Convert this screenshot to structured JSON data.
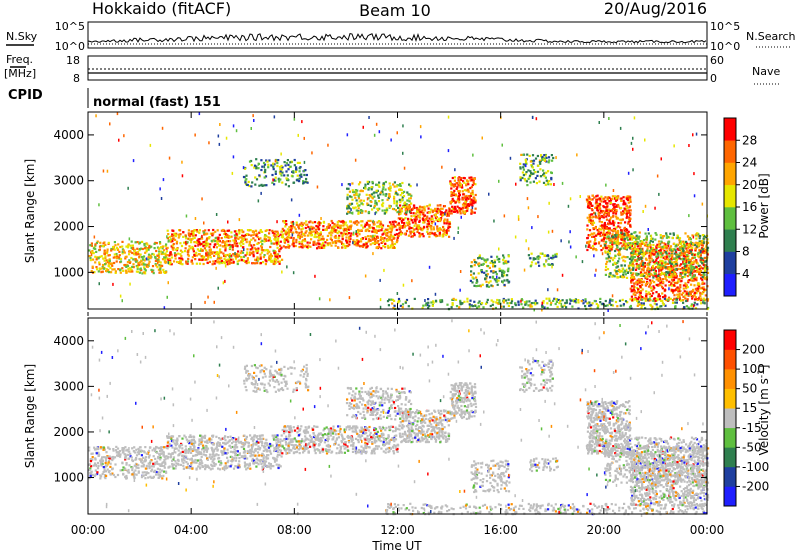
{
  "header": {
    "station": "Hokkaido (fitACF)",
    "beam": "Beam 10",
    "date": "20/Aug/2016"
  },
  "top_panels": {
    "nsky_label": "N.Sky",
    "nsky_ticks": [
      "10^5",
      "10^0"
    ],
    "nsearch_label": "N.Search",
    "nsearch_ticks": [
      "10^5",
      "10^0"
    ],
    "freq_label_line1": "Freq.",
    "freq_label_line2": "[MHz]",
    "freq_ticks": [
      "18",
      "8"
    ],
    "nave_label": "Nave",
    "nave_ticks": [
      "60",
      "0"
    ],
    "cpid_label": "CPID",
    "cpid_value": "normal (fast) 151"
  },
  "chart_data": [
    {
      "type": "heatmap",
      "panel": "power",
      "ylabel": "Slant Range [km]",
      "xlabel": "",
      "yticks": [
        "1000",
        "2000",
        "3000",
        "4000"
      ],
      "ylim": [
        200,
        4500
      ],
      "xlim_hours": [
        0,
        24
      ],
      "colorbar_label": "Power [dB]",
      "colorbar_ticks": [
        "4",
        "8",
        "12",
        "16",
        "20",
        "24",
        "28"
      ],
      "colorbar_colors": [
        "#1f1fff",
        "#1f3f9f",
        "#2f7f4f",
        "#5fbf3f",
        "#e6e600",
        "#ffa500",
        "#ff6600",
        "#ff0000"
      ],
      "bands": [
        {
          "t0": 0.0,
          "t1": 3.0,
          "r0": 1000,
          "r1": 1700,
          "intensity": 0.65
        },
        {
          "t0": 3.0,
          "t1": 7.5,
          "r0": 1200,
          "r1": 1950,
          "intensity": 0.75
        },
        {
          "t0": 7.5,
          "t1": 12.0,
          "r0": 1550,
          "r1": 2150,
          "intensity": 0.8
        },
        {
          "t0": 12.0,
          "t1": 14.0,
          "r0": 1800,
          "r1": 2500,
          "intensity": 0.85
        },
        {
          "t0": 14.0,
          "t1": 15.0,
          "r0": 2300,
          "r1": 3100,
          "intensity": 0.9
        },
        {
          "t0": 6.0,
          "t1": 8.5,
          "r0": 2900,
          "r1": 3500,
          "intensity": 0.35
        },
        {
          "t0": 10.0,
          "t1": 12.5,
          "r0": 2300,
          "r1": 3000,
          "intensity": 0.5
        },
        {
          "t0": 14.8,
          "t1": 16.3,
          "r0": 700,
          "r1": 1400,
          "intensity": 0.45
        },
        {
          "t0": 17.0,
          "t1": 18.2,
          "r0": 1150,
          "r1": 1450,
          "intensity": 0.35
        },
        {
          "t0": 16.7,
          "t1": 18.0,
          "r0": 2900,
          "r1": 3600,
          "intensity": 0.4
        },
        {
          "t0": 19.3,
          "t1": 21.0,
          "r0": 1500,
          "r1": 2700,
          "intensity": 0.9
        },
        {
          "t0": 21.0,
          "t1": 24.0,
          "r0": 400,
          "r1": 1700,
          "intensity": 0.85
        },
        {
          "t0": 20.0,
          "t1": 24.0,
          "r0": 900,
          "r1": 1900,
          "intensity": 0.5
        },
        {
          "t0": 11.5,
          "t1": 24.0,
          "r0": 220,
          "r1": 450,
          "intensity": 0.4
        }
      ]
    },
    {
      "type": "heatmap",
      "panel": "velocity",
      "ylabel": "Slant Range [km]",
      "xlabel": "Time UT",
      "yticks": [
        "1000",
        "2000",
        "3000",
        "4000"
      ],
      "ylim": [
        200,
        4500
      ],
      "xticks": [
        "00:00",
        "04:00",
        "08:00",
        "12:00",
        "16:00",
        "20:00",
        "00:00"
      ],
      "xlim_hours": [
        0,
        24
      ],
      "colorbar_label": "Velocity [m s^-1]",
      "colorbar_ticks": [
        "200",
        "100",
        "50",
        "15",
        "-15",
        "-50",
        "-100",
        "-200"
      ],
      "colorbar_colors": [
        "#1f1fff",
        "#1f3f9f",
        "#2f7f4f",
        "#5fbf3f",
        "#bebebe",
        "#ffbf00",
        "#ff9000",
        "#ff5000",
        "#ff0000"
      ],
      "bands": [
        {
          "t0": 0.0,
          "t1": 3.0,
          "r0": 1000,
          "r1": 1700,
          "intensity": 0.65
        },
        {
          "t0": 3.0,
          "t1": 7.5,
          "r0": 1200,
          "r1": 1950,
          "intensity": 0.75
        },
        {
          "t0": 7.5,
          "t1": 12.0,
          "r0": 1550,
          "r1": 2150,
          "intensity": 0.8
        },
        {
          "t0": 12.0,
          "t1": 14.0,
          "r0": 1800,
          "r1": 2500,
          "intensity": 0.85
        },
        {
          "t0": 14.0,
          "t1": 15.0,
          "r0": 2300,
          "r1": 3100,
          "intensity": 0.9
        },
        {
          "t0": 6.0,
          "t1": 8.5,
          "r0": 2900,
          "r1": 3500,
          "intensity": 0.35
        },
        {
          "t0": 10.0,
          "t1": 12.5,
          "r0": 2300,
          "r1": 3000,
          "intensity": 0.5
        },
        {
          "t0": 14.8,
          "t1": 16.3,
          "r0": 700,
          "r1": 1400,
          "intensity": 0.45
        },
        {
          "t0": 17.0,
          "t1": 18.2,
          "r0": 1150,
          "r1": 1450,
          "intensity": 0.35
        },
        {
          "t0": 16.7,
          "t1": 18.0,
          "r0": 2900,
          "r1": 3600,
          "intensity": 0.4
        },
        {
          "t0": 19.3,
          "t1": 21.0,
          "r0": 1500,
          "r1": 2700,
          "intensity": 0.9
        },
        {
          "t0": 21.0,
          "t1": 24.0,
          "r0": 400,
          "r1": 1700,
          "intensity": 0.85
        },
        {
          "t0": 20.0,
          "t1": 24.0,
          "r0": 900,
          "r1": 1900,
          "intensity": 0.5
        },
        {
          "t0": 11.5,
          "t1": 24.0,
          "r0": 220,
          "r1": 450,
          "intensity": 0.4
        }
      ]
    }
  ]
}
